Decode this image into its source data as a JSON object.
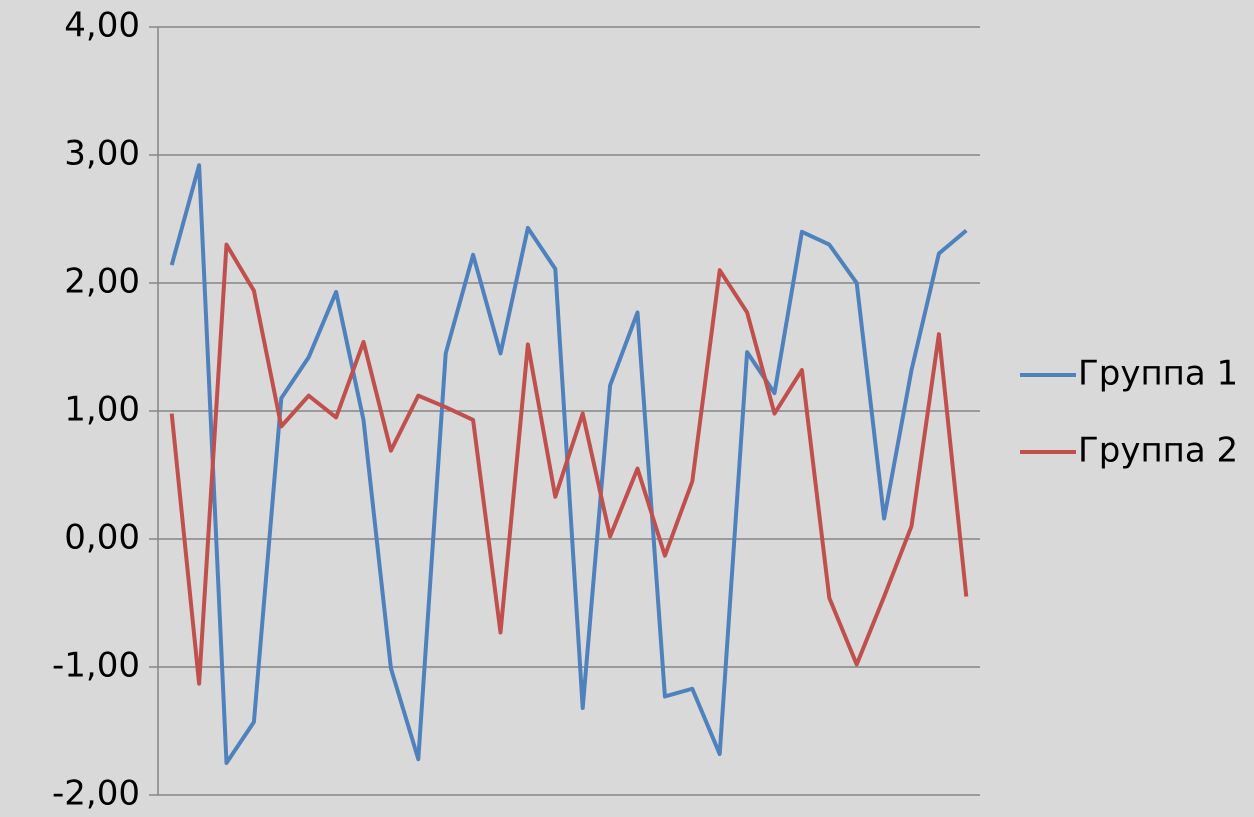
{
  "chart_data": {
    "type": "line",
    "categories": [
      null,
      null,
      null,
      null,
      null,
      null,
      null,
      null,
      null,
      null,
      null,
      null,
      null,
      null,
      null,
      null,
      null,
      null,
      null,
      null,
      null,
      null,
      null,
      null,
      null,
      null,
      null,
      null,
      null,
      null
    ],
    "series": [
      {
        "name": "Группа 1",
        "color": "#4f81bd",
        "values": [
          2.14,
          2.92,
          -1.75,
          -1.43,
          1.1,
          1.42,
          1.93,
          0.93,
          -1.01,
          -1.72,
          1.45,
          2.22,
          1.45,
          2.43,
          2.11,
          -1.32,
          1.2,
          1.77,
          -1.23,
          -1.17,
          -1.68,
          1.46,
          1.14,
          2.4,
          2.3,
          2.0,
          0.16,
          1.32,
          2.23,
          2.41
        ]
      },
      {
        "name": "Группа 2",
        "color": "#c0504d",
        "values": [
          0.98,
          -1.13,
          2.3,
          1.94,
          0.88,
          1.12,
          0.95,
          1.54,
          0.69,
          1.12,
          1.03,
          0.93,
          -0.73,
          1.52,
          0.33,
          0.98,
          0.02,
          0.55,
          -0.13,
          0.45,
          2.1,
          1.77,
          0.98,
          1.32,
          -0.46,
          -0.98,
          -0.45,
          0.1,
          1.6,
          -0.45
        ]
      }
    ],
    "ylim": [
      -2,
      4
    ],
    "yticks": [
      {
        "value": -2,
        "label": "-2,00"
      },
      {
        "value": -1,
        "label": "-1,00"
      },
      {
        "value": 0,
        "label": "0,00"
      },
      {
        "value": 1,
        "label": "1,00"
      },
      {
        "value": 2,
        "label": "2,00"
      },
      {
        "value": 3,
        "label": "3,00"
      },
      {
        "value": 4,
        "label": "4,00"
      }
    ],
    "grid": true,
    "legend": "right"
  }
}
